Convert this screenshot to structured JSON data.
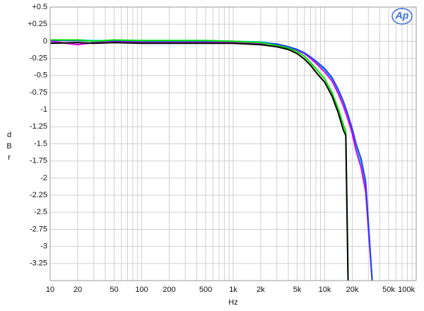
{
  "chart_data": {
    "type": "line",
    "xlabel": "Hz",
    "ylabel": "dBr",
    "logo": "Ap",
    "xscale": "log",
    "grid": true,
    "minor_grid": true,
    "xlim": [
      10,
      100000
    ],
    "ylim": [
      -3.5,
      0.5
    ],
    "xticks": [
      10,
      20,
      50,
      100,
      200,
      500,
      {
        "value": 1000,
        "label": "1k"
      },
      {
        "value": 2000,
        "label": "2k"
      },
      {
        "value": 5000,
        "label": "5k"
      },
      {
        "value": 10000,
        "label": "10k"
      },
      {
        "value": 20000,
        "label": "20k"
      },
      {
        "value": 50000,
        "label": "50k"
      },
      {
        "value": 100000,
        "label": "100k"
      }
    ],
    "yticks": [
      {
        "value": 0.5,
        "label": "+0.5"
      },
      {
        "value": 0.25,
        "label": "+0.25"
      },
      0,
      -0.25,
      -0.5,
      -0.75,
      -1,
      -1.25,
      -1.5,
      -1.75,
      -2,
      -2.25,
      -2.5,
      -2.75,
      -3,
      -3.25
    ],
    "x": [
      10,
      20,
      30,
      50,
      100,
      200,
      500,
      1000,
      2000,
      3000,
      4000,
      5000,
      6000,
      7000,
      8000,
      10000,
      12000,
      14000,
      16000,
      17000,
      18000,
      20000,
      22000,
      25000,
      28000,
      33000
    ],
    "series": [
      {
        "color": "#00e8e8",
        "values": [
          0.02,
          0.02,
          0.01,
          0.01,
          0.01,
          0.01,
          0.01,
          0.0,
          -0.01,
          -0.04,
          -0.08,
          -0.12,
          -0.17,
          -0.23,
          -0.3,
          -0.42,
          -0.55,
          -0.72,
          -0.9,
          -1.0,
          -1.1,
          -1.3,
          -1.55,
          -1.78,
          -2.1,
          -3.5
        ]
      },
      {
        "color": "#e000e0",
        "values": [
          0.0,
          -0.05,
          -0.02,
          -0.01,
          -0.01,
          -0.01,
          -0.01,
          -0.01,
          -0.03,
          -0.05,
          -0.09,
          -0.13,
          -0.18,
          -0.25,
          -0.32,
          -0.45,
          -0.58,
          -0.76,
          -0.95,
          -1.05,
          -1.15,
          -1.35,
          -1.6,
          -1.85,
          -2.2,
          -3.5
        ]
      },
      {
        "color": "#2040ff",
        "values": [
          0.01,
          0.01,
          0.0,
          0.01,
          0.0,
          0.0,
          0.0,
          0.0,
          -0.02,
          -0.04,
          -0.08,
          -0.12,
          -0.17,
          -0.23,
          -0.29,
          -0.4,
          -0.53,
          -0.7,
          -0.88,
          -0.98,
          -1.08,
          -1.28,
          -1.5,
          -1.72,
          -2.05,
          -3.5
        ]
      },
      {
        "color": "#00e000",
        "values": [
          0.02,
          0.02,
          0.0,
          0.02,
          0.01,
          0.01,
          0.01,
          0.0,
          -0.02,
          -0.06,
          -0.1,
          -0.15,
          -0.22,
          -0.31,
          -0.4,
          -0.55,
          -0.75,
          -0.98,
          -1.22,
          -1.32,
          -3.5,
          null,
          null,
          null,
          null,
          null
        ]
      },
      {
        "color": "#000000",
        "values": [
          -0.03,
          -0.02,
          -0.03,
          -0.02,
          -0.03,
          -0.03,
          -0.03,
          -0.03,
          -0.05,
          -0.08,
          -0.12,
          -0.18,
          -0.26,
          -0.35,
          -0.45,
          -0.6,
          -0.8,
          -1.04,
          -1.3,
          -1.38,
          -3.5,
          null,
          null,
          null,
          null,
          null
        ]
      }
    ]
  }
}
